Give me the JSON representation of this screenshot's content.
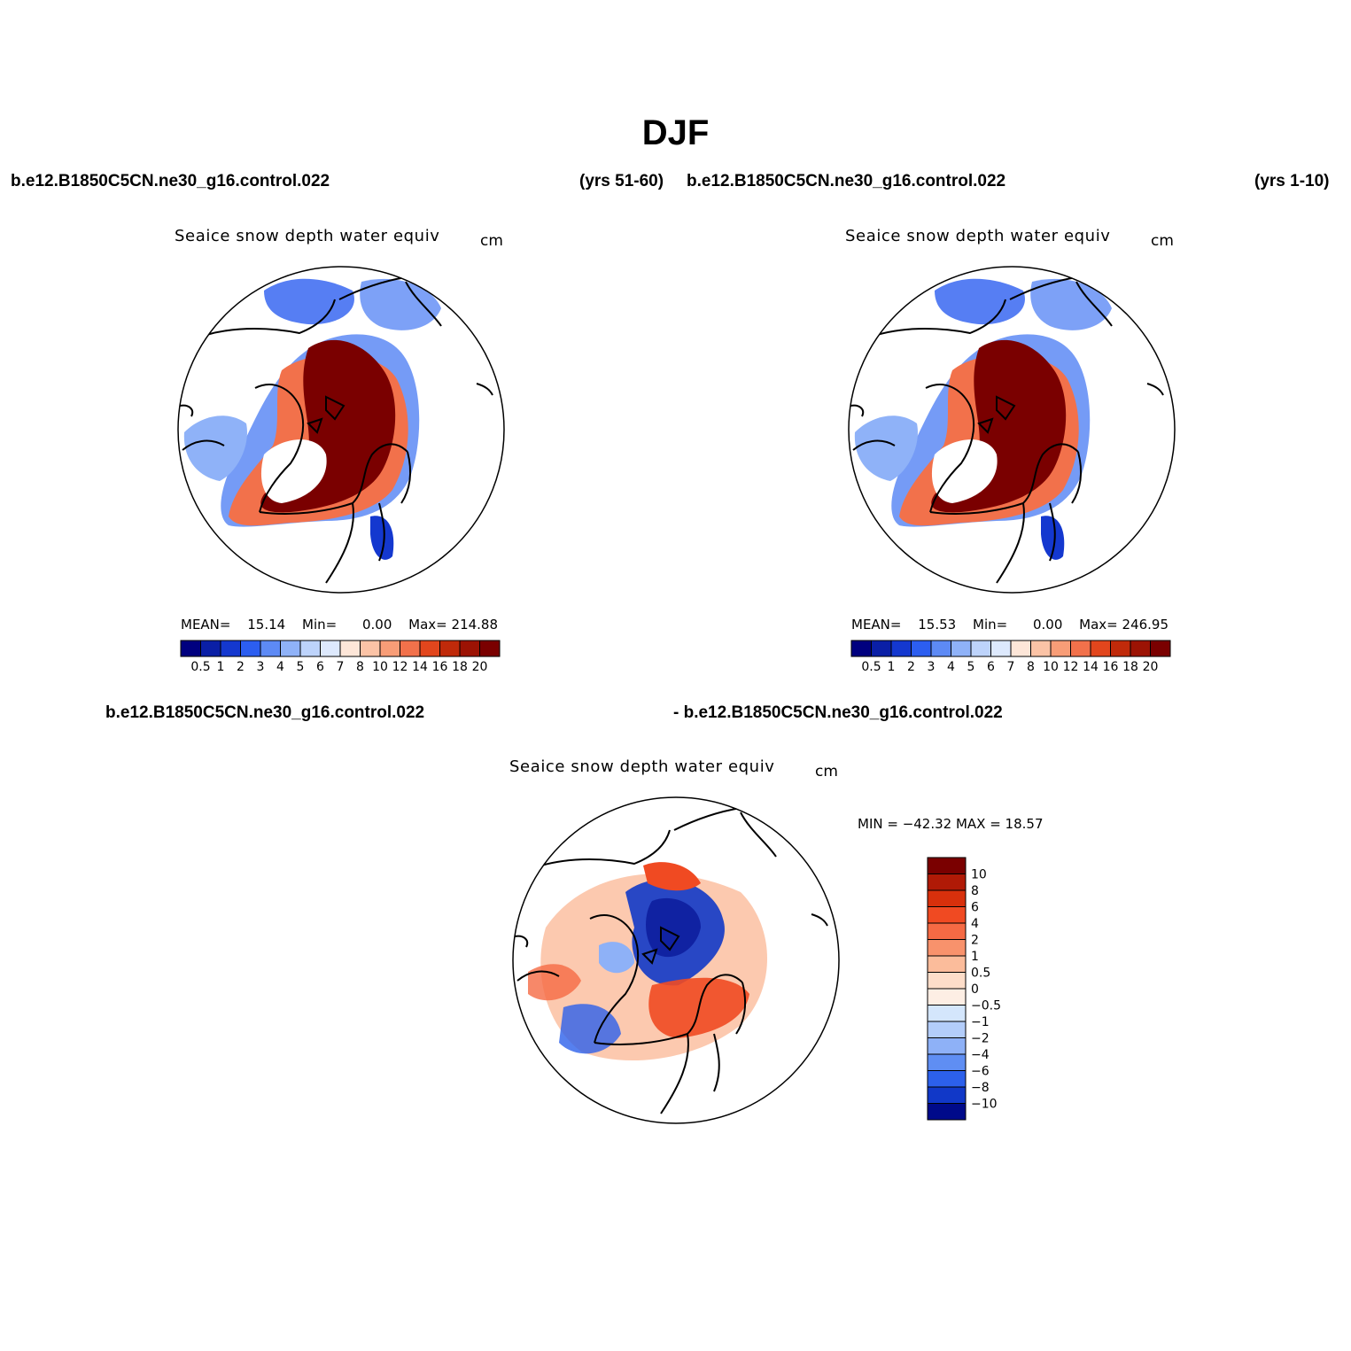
{
  "title": "DJF",
  "panels": [
    {
      "case_left": "b.e12.B1850C5CN.ne30_g16.control.022",
      "case_right": "(yrs 51-60)",
      "plot_title": "Seaice snow depth water equiv",
      "units": "cm",
      "stats": {
        "mean_label": "MEAN=",
        "mean": "15.14",
        "min_label": "Min=",
        "min": "0.00",
        "max_label": "Max=",
        "max": "214.88"
      }
    },
    {
      "case_left": "b.e12.B1850C5CN.ne30_g16.control.022",
      "case_right": "(yrs 1-10)",
      "plot_title": "Seaice snow depth water equiv",
      "units": "cm",
      "stats": {
        "mean_label": "MEAN=",
        "mean": "15.53",
        "min_label": "Min=",
        "min": "0.00",
        "max_label": "Max=",
        "max": "246.95"
      }
    },
    {
      "case_left": "b.e12.B1850C5CN.ne30_g16.control.022",
      "case_right": "- b.e12.B1850C5CN.ne30_g16.control.022",
      "plot_title": "Seaice snow depth water equiv",
      "units": "cm",
      "stats": {
        "label": "MIN = −42.32  MAX =  18.57"
      }
    }
  ],
  "chart_data": [
    {
      "type": "heatmap",
      "projection": "north-polar-stereographic",
      "variable": "Seaice snow depth water equiv",
      "units": "cm",
      "mean": 15.14,
      "min": 0.0,
      "max": 214.88,
      "colorbar": {
        "levels": [
          "0.5",
          "1",
          "2",
          "3",
          "4",
          "5",
          "6",
          "7",
          "8",
          "10",
          "12",
          "14",
          "16",
          "18",
          "20"
        ],
        "colors": [
          "#00007f",
          "#0a1fa6",
          "#1438cf",
          "#2c5ef0",
          "#5d8af5",
          "#8fb2f8",
          "#bdd3fb",
          "#dde9fd",
          "#fde6d8",
          "#fbc3a6",
          "#f89d77",
          "#f2714b",
          "#e2461d",
          "#c02a0a",
          "#9c1304",
          "#7a0000"
        ]
      }
    },
    {
      "type": "heatmap",
      "projection": "north-polar-stereographic",
      "variable": "Seaice snow depth water equiv",
      "units": "cm",
      "mean": 15.53,
      "min": 0.0,
      "max": 246.95,
      "colorbar": {
        "levels": [
          "0.5",
          "1",
          "2",
          "3",
          "4",
          "5",
          "6",
          "7",
          "8",
          "10",
          "12",
          "14",
          "16",
          "18",
          "20"
        ],
        "colors": [
          "#00007f",
          "#0a1fa6",
          "#1438cf",
          "#2c5ef0",
          "#5d8af5",
          "#8fb2f8",
          "#bdd3fb",
          "#dde9fd",
          "#fde6d8",
          "#fbc3a6",
          "#f89d77",
          "#f2714b",
          "#e2461d",
          "#c02a0a",
          "#9c1304",
          "#7a0000"
        ]
      }
    },
    {
      "type": "heatmap",
      "projection": "north-polar-stereographic",
      "variable": "Seaice snow depth water equiv (difference)",
      "units": "cm",
      "min": -42.32,
      "max": 18.57,
      "colorbar": {
        "levels": [
          "10",
          "8",
          "6",
          "4",
          "2",
          "1",
          "0.5",
          "0",
          "−0.5",
          "−1",
          "−2",
          "−4",
          "−6",
          "−8",
          "−10"
        ],
        "colors": [
          "#7a0000",
          "#b01a06",
          "#d8300c",
          "#f04a22",
          "#f56a44",
          "#f8926c",
          "#fbbc9b",
          "#fdddc9",
          "#fdeee4",
          "#d4e6fc",
          "#b3cdfa",
          "#8eb1f7",
          "#5f8ef3",
          "#2c60eb",
          "#1138c8",
          "#000a8a"
        ]
      }
    }
  ]
}
